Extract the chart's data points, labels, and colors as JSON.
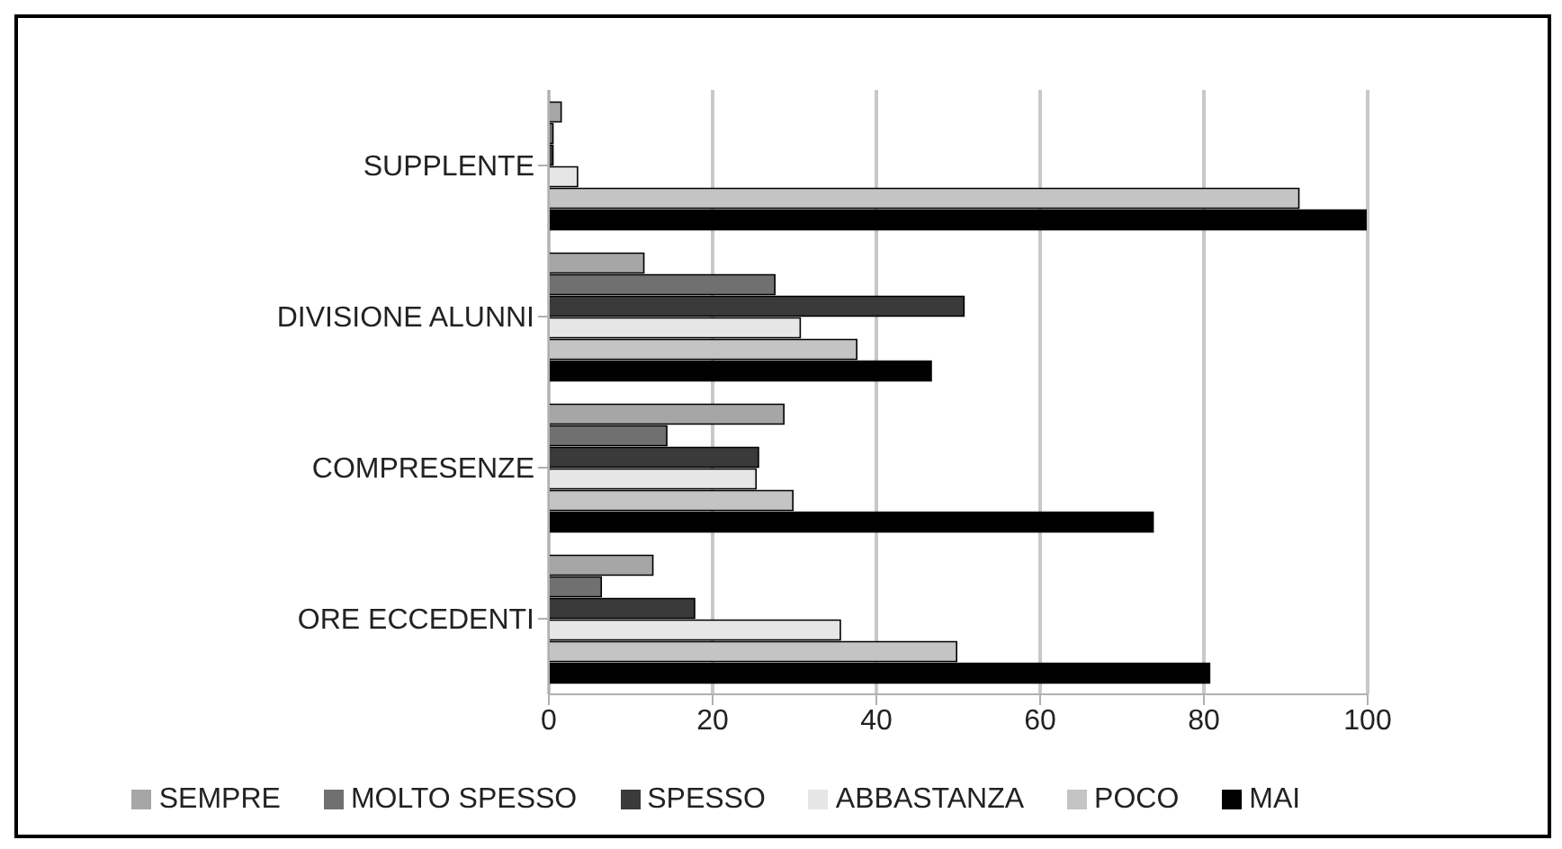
{
  "chart_data": {
    "type": "bar",
    "orientation": "horizontal",
    "categories": [
      "SUPPLENTE",
      "DIVISIONE ALUNNI",
      "COMPRESENZE",
      "ORE ECCEDENTI"
    ],
    "series": [
      {
        "name": "SEMPRE",
        "color": "#a6a6a6",
        "values": [
          1.5,
          11.6,
          28.7,
          12.7
        ]
      },
      {
        "name": "MOLTO SPESSO",
        "color": "#707070",
        "values": [
          0.5,
          27.6,
          14.4,
          6.4
        ]
      },
      {
        "name": "SPESSO",
        "color": "#3a3a3a",
        "values": [
          0.5,
          50.7,
          25.6,
          17.8
        ]
      },
      {
        "name": "ABBASTANZA",
        "color": "#e6e6e6",
        "values": [
          3.5,
          30.7,
          25.3,
          35.6
        ]
      },
      {
        "name": "POCO",
        "color": "#c4c4c4",
        "values": [
          91.6,
          37.6,
          29.8,
          49.8
        ]
      },
      {
        "name": "MAI",
        "color": "#000000",
        "values": [
          99.8,
          46.7,
          73.8,
          80.7
        ]
      }
    ],
    "xlim": [
      0,
      100
    ],
    "xticks": [
      0,
      20,
      40,
      60,
      80,
      100
    ],
    "grid": "x",
    "legend": "bottom"
  }
}
